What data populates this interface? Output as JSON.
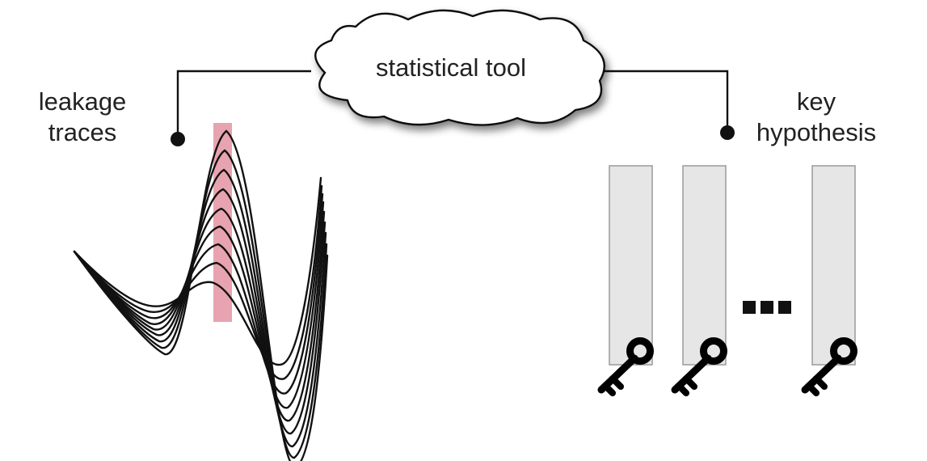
{
  "labels": {
    "tool": "statistical tool",
    "traces_line1": "leakage",
    "traces_line2": "traces",
    "key_line1": "key",
    "key_line2": "hypothesis"
  },
  "colors": {
    "highlight": "#e8a3b0",
    "key_bar": "#e6e6e6",
    "stroke": "#111111"
  },
  "icons": {
    "cloud": "cloud-shape",
    "key": "key-icon",
    "ellipsis": "ellipsis-squares"
  }
}
